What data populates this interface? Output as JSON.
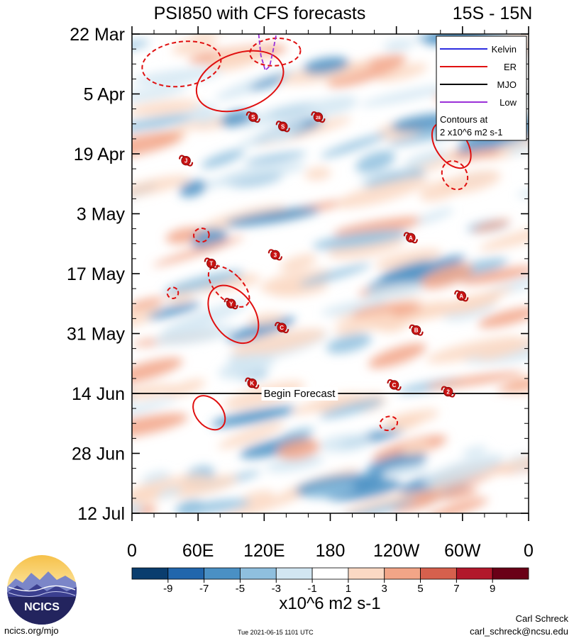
{
  "chart_data": {
    "type": "heatmap",
    "title_left": "PSI850 with CFS forecasts",
    "title_right": "15S - 15N",
    "x_axis": {
      "ticks": [
        {
          "lon": 0,
          "label": "0"
        },
        {
          "lon": 60,
          "label": "60E"
        },
        {
          "lon": 120,
          "label": "120E"
        },
        {
          "lon": 180,
          "label": "180"
        },
        {
          "lon": 240,
          "label": "120W"
        },
        {
          "lon": 300,
          "label": "60W"
        },
        {
          "lon": 360,
          "label": "0"
        }
      ],
      "range": [
        0,
        360
      ]
    },
    "y_axis": {
      "ticks": [
        {
          "day": 0,
          "label": "22 Mar"
        },
        {
          "day": 14,
          "label": "5 Apr"
        },
        {
          "day": 28,
          "label": "19 Apr"
        },
        {
          "day": 42,
          "label": "3 May"
        },
        {
          "day": 56,
          "label": "17 May"
        },
        {
          "day": 70,
          "label": "31 May"
        },
        {
          "day": 84,
          "label": "14 Jun"
        },
        {
          "day": 98,
          "label": "28 Jun"
        },
        {
          "day": 112,
          "label": "12 Jul"
        }
      ],
      "range_days": [
        0,
        112
      ]
    },
    "forecast_start": {
      "day": 84,
      "label": "Begin Forecast"
    },
    "legend": {
      "position": "top-right",
      "items": [
        {
          "label": "Kelvin",
          "color": "#2d2de0",
          "style": "solid"
        },
        {
          "label": "ER",
          "color": "#e01010",
          "style": "solid"
        },
        {
          "label": "MJO",
          "color": "#000000",
          "style": "solid"
        },
        {
          "label": "Low",
          "color": "#9a30d8",
          "style": "solid"
        }
      ],
      "note_line1": "Contours at",
      "note_line2": "2 x10^6 m2 s-1"
    },
    "colorbar": {
      "unit_label": "x10^6 m2 s-1",
      "bounds": [
        -11,
        -9,
        -7,
        -5,
        -3,
        -1,
        1,
        3,
        5,
        7,
        9,
        11
      ],
      "labels": [
        "-9",
        "-7",
        "-5",
        "-3",
        "-1",
        "1",
        "3",
        "5",
        "7",
        "9"
      ],
      "colors": [
        "#0a3d6e",
        "#2166ac",
        "#4a90c4",
        "#8fbfde",
        "#d2e6f2",
        "#ffffff",
        "#fbd9c4",
        "#f2a587",
        "#d6604d",
        "#b2182b",
        "#6a0017"
      ]
    },
    "contours": [
      {
        "lon": 45,
        "day": 7.0,
        "rx": 36,
        "ry": 5.2,
        "rot": -8,
        "color": "#e01010",
        "dashed": true
      },
      {
        "lon": 130,
        "day": 4.2,
        "rx": 23,
        "ry": 3.2,
        "rot": -4,
        "color": "#e01010",
        "dashed": true
      },
      {
        "lon": 98,
        "day": 11.0,
        "rx": 41,
        "ry": 6.5,
        "rot": -20,
        "color": "#e01010",
        "dashed": false
      },
      {
        "lon": 290,
        "day": 26.0,
        "rx": 14,
        "ry": 6.0,
        "rot": -35,
        "color": "#e01010",
        "dashed": false
      },
      {
        "lon": 293,
        "day": 33.0,
        "rx": 11,
        "ry": 3.5,
        "rot": -30,
        "color": "#e01010",
        "dashed": true
      },
      {
        "lon": 63,
        "day": 47.0,
        "rx": 7,
        "ry": 1.6,
        "rot": -10,
        "color": "#e01010",
        "dashed": true
      },
      {
        "lon": 88,
        "day": 59.0,
        "rx": 12,
        "ry": 6.0,
        "rot": -45,
        "color": "#e01010",
        "dashed": true
      },
      {
        "lon": 92,
        "day": 65.5,
        "rx": 19,
        "ry": 7.5,
        "rot": -35,
        "color": "#e01010",
        "dashed": false
      },
      {
        "lon": 37,
        "day": 60.5,
        "rx": 5,
        "ry": 1.3,
        "rot": -20,
        "color": "#e01010",
        "dashed": true
      },
      {
        "lon": 70,
        "day": 88.5,
        "rx": 12,
        "ry": 4.5,
        "rot": -40,
        "color": "#e01010",
        "dashed": false
      },
      {
        "lon": 233,
        "day": 91.0,
        "rx": 8,
        "ry": 1.6,
        "rot": -15,
        "color": "#e01010",
        "dashed": true
      }
    ],
    "low_track": [
      [
        115,
        0.0
      ],
      [
        117,
        5.0
      ],
      [
        121,
        8.5
      ],
      [
        125,
        7.5
      ],
      [
        128,
        4.0
      ],
      [
        131,
        0.0
      ]
    ],
    "storms": [
      {
        "letter": "J",
        "lon": 49,
        "day": 29.6
      },
      {
        "letter": "S",
        "lon": 110,
        "day": 19.4
      },
      {
        "letter": "S",
        "lon": 137,
        "day": 21.6
      },
      {
        "letter": "28",
        "lon": 169,
        "day": 19.4
      },
      {
        "letter": "T",
        "lon": 72,
        "day": 53.6
      },
      {
        "letter": "3",
        "lon": 130,
        "day": 51.6
      },
      {
        "letter": "Y",
        "lon": 90,
        "day": 63.0
      },
      {
        "letter": "C",
        "lon": 136,
        "day": 68.6
      },
      {
        "letter": "K",
        "lon": 109,
        "day": 81.6
      },
      {
        "letter": "A",
        "lon": 253,
        "day": 47.6
      },
      {
        "letter": "A",
        "lon": 299,
        "day": 61.2
      },
      {
        "letter": "B",
        "lon": 258,
        "day": 69.2
      },
      {
        "letter": "C",
        "lon": 238,
        "day": 82.0
      },
      {
        "letter": "2",
        "lon": 287,
        "day": 83.6
      }
    ]
  },
  "footer": {
    "logo_text": "NCICS",
    "url": "ncics.org/mjo",
    "timestamp": "Tue 2021-06-15 1101 UTC",
    "author": "Carl Schreck",
    "email": "carl_schreck@ncsu.edu"
  }
}
